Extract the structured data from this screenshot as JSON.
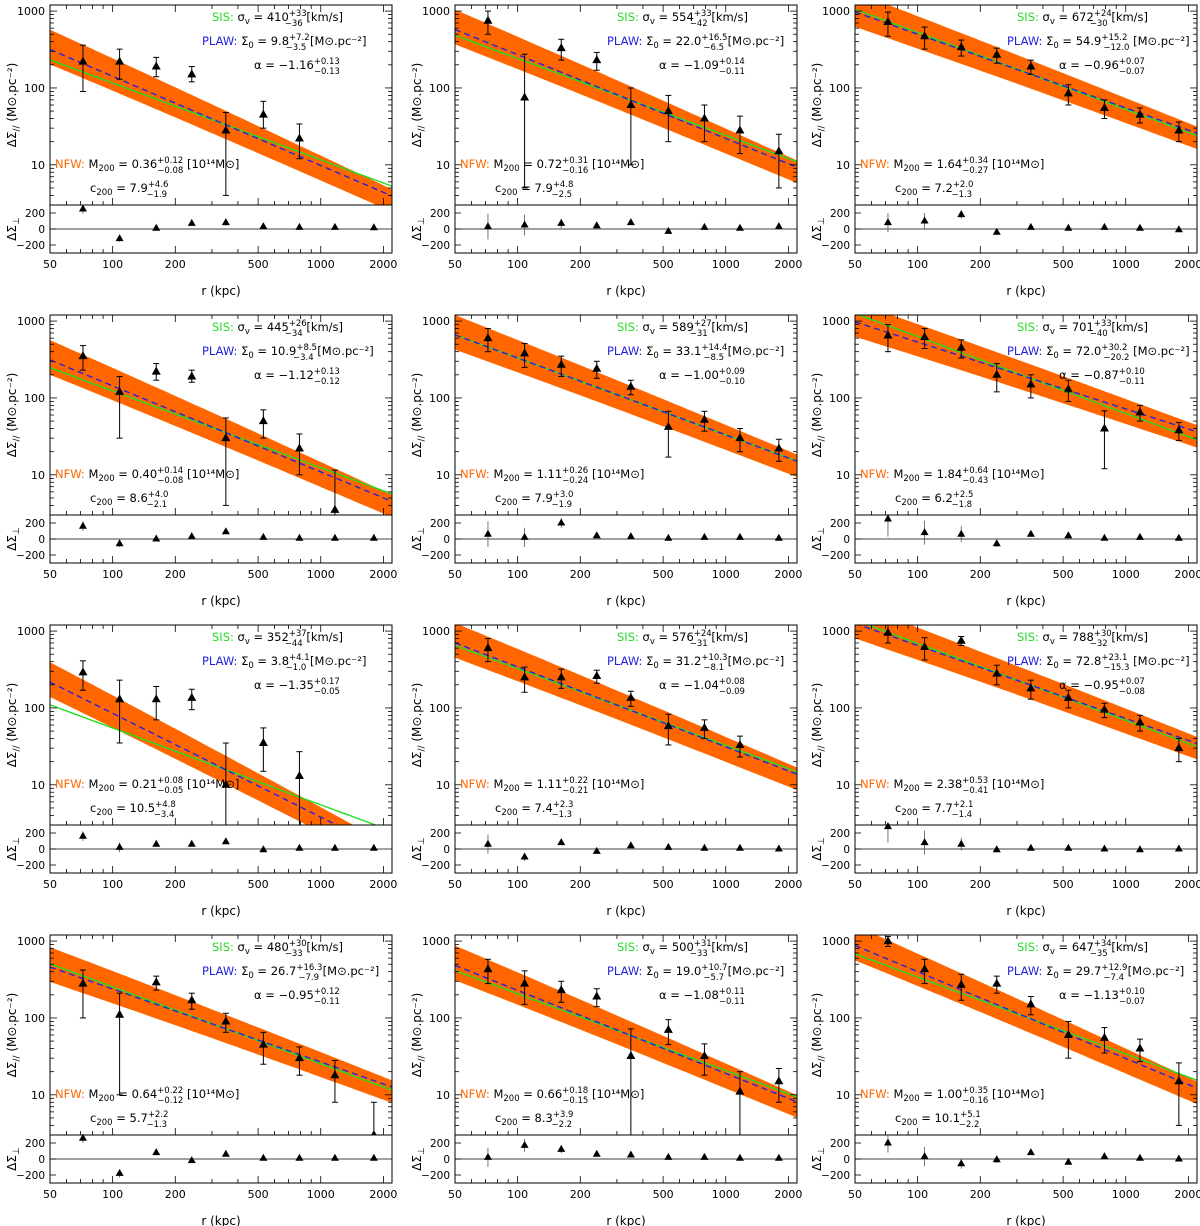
{
  "figure": {
    "colors": {
      "sis": "#22dd22",
      "plaw": "#2222dd",
      "nfw": "#ff6600",
      "band": "#ff6600",
      "data": "#000000"
    },
    "labels": {
      "sis_tag": "SIS:",
      "plaw_tag": "PLAW:",
      "nfw_tag": "NFW:",
      "sis_unit": "[km/s]",
      "plaw_unit": "[M⊙.pc⁻²]",
      "nfw_unit": "[10¹⁴M⊙]",
      "sigma_sym": "σ",
      "sigma_sub": "v",
      "sigma0_sym": "Σ",
      "sigma0_sub": "0",
      "alpha_sym": "α",
      "m_sym": "M",
      "m_sub": "200",
      "c_sym": "c",
      "c_sub": "200",
      "xlabel": "r (kpc)",
      "ylabel_main_sym": "ΔΣ",
      "ylabel_main_sub": "//",
      "ylabel_main_unit": "(M⊙.pc⁻²)",
      "ylabel_perp_sym": "ΔΣ",
      "ylabel_perp_sub": "⊥"
    },
    "xticks": [
      "50",
      "100",
      "200",
      "500",
      "1000",
      "2000"
    ],
    "yticks_main": [
      "10",
      "100",
      "1000"
    ],
    "yticks_perp": [
      "200",
      "0",
      "−200"
    ]
  },
  "chart_data": [
    {
      "type": "scatter",
      "xscale": "log",
      "yscale": "log",
      "xlim": [
        50,
        2200
      ],
      "ylim": [
        3,
        1200
      ],
      "perp_ylim": [
        -300,
        300
      ],
      "sis": {
        "value": "410",
        "up": "+33",
        "lo": "−36"
      },
      "plaw": {
        "value": "9.8",
        "up": "+7.2",
        "lo": "−3.5",
        "alpha": "−1.16",
        "alpha_up": "+0.13",
        "alpha_lo": "−0.13"
      },
      "nfw": {
        "m200": "0.36",
        "m_up": "+0.12",
        "m_lo": "−0.08",
        "c200": "7.9",
        "c_up": "+4.6",
        "c_lo": "−1.9"
      },
      "r": [
        72,
        108,
        162,
        240,
        350,
        530,
        790,
        1170,
        1800
      ],
      "dsig": [
        220,
        220,
        190,
        150,
        28,
        45,
        22,
        null,
        null
      ],
      "err_lo": [
        130,
        90,
        50,
        30,
        24,
        15,
        10,
        null,
        null
      ],
      "err_hi": [
        140,
        100,
        60,
        40,
        20,
        22,
        12,
        null,
        null
      ],
      "dperp": [
        250,
        -120,
        10,
        70,
        80,
        30,
        20,
        20,
        15
      ],
      "perp_err": [
        60,
        40,
        30,
        30,
        40,
        20,
        20,
        20,
        20
      ]
    },
    {
      "type": "scatter",
      "xscale": "log",
      "yscale": "log",
      "xlim": [
        50,
        2200
      ],
      "ylim": [
        3,
        1200
      ],
      "perp_ylim": [
        -300,
        300
      ],
      "sis": {
        "value": "554",
        "up": "+33",
        "lo": "−42"
      },
      "plaw": {
        "value": "22.0",
        "up": "+16.5",
        "lo": "−6.5",
        "alpha": "−1.09",
        "alpha_up": "+0.14",
        "alpha_lo": "−0.11"
      },
      "nfw": {
        "m200": "0.72",
        "m_up": "+0.31",
        "m_lo": "−0.16",
        "c200": "7.9",
        "c_up": "+4.8",
        "c_lo": "−2.5"
      },
      "r": [
        72,
        108,
        162,
        240,
        350,
        530,
        790,
        1170,
        1800
      ],
      "dsig": [
        750,
        75,
        330,
        230,
        60,
        50,
        40,
        28,
        15
      ],
      "err_lo": [
        250,
        70,
        100,
        60,
        50,
        30,
        20,
        14,
        10
      ],
      "err_hi": [
        250,
        200,
        100,
        60,
        40,
        30,
        20,
        15,
        10
      ],
      "dperp": [
        30,
        50,
        70,
        40,
        80,
        -30,
        20,
        10,
        30
      ],
      "perp_err": [
        160,
        130,
        60,
        40,
        20,
        20,
        20,
        20,
        20
      ]
    },
    {
      "type": "scatter",
      "xscale": "log",
      "yscale": "log",
      "xlim": [
        50,
        2200
      ],
      "ylim": [
        3,
        1200
      ],
      "perp_ylim": [
        -300,
        300
      ],
      "sis": {
        "value": "672",
        "up": "+24",
        "lo": "−30"
      },
      "plaw": {
        "value": "54.9",
        "up": "+15.2",
        "lo": "−12.0",
        "alpha": "−0.96",
        "alpha_up": "+0.07",
        "alpha_lo": "−0.07"
      },
      "nfw": {
        "m200": "1.64",
        "m_up": "+0.34",
        "m_lo": "−0.27",
        "c200": "7.2",
        "c_up": "+2.0",
        "c_lo": "−1.3"
      },
      "r": [
        72,
        108,
        162,
        240,
        350,
        530,
        790,
        1170,
        1800
      ],
      "dsig": [
        720,
        470,
        340,
        270,
        190,
        85,
        55,
        45,
        28
      ],
      "err_lo": [
        250,
        150,
        80,
        60,
        40,
        25,
        15,
        10,
        8
      ],
      "err_hi": [
        250,
        150,
        80,
        60,
        40,
        25,
        15,
        10,
        8
      ],
      "dperp": [
        80,
        100,
        180,
        -40,
        20,
        10,
        20,
        10,
        -10
      ],
      "perp_err": [
        120,
        100,
        50,
        30,
        20,
        20,
        20,
        20,
        20
      ]
    },
    {
      "type": "scatter",
      "xscale": "log",
      "yscale": "log",
      "xlim": [
        50,
        2200
      ],
      "ylim": [
        3,
        1200
      ],
      "perp_ylim": [
        -300,
        300
      ],
      "sis": {
        "value": "445",
        "up": "+26",
        "lo": "−34"
      },
      "plaw": {
        "value": "10.9",
        "up": "+8.5",
        "lo": "−3.4",
        "alpha": "−1.12",
        "alpha_up": "+0.13",
        "alpha_lo": "−0.12"
      },
      "nfw": {
        "m200": "0.40",
        "m_up": "+0.14",
        "m_lo": "−0.08",
        "c200": "8.6",
        "c_up": "+4.0",
        "c_lo": "−2.1"
      },
      "r": [
        72,
        108,
        162,
        240,
        350,
        530,
        790,
        1170,
        1800
      ],
      "dsig": [
        350,
        120,
        220,
        190,
        30,
        50,
        22,
        3.5,
        null
      ],
      "err_lo": [
        120,
        90,
        50,
        30,
        26,
        20,
        12,
        0.5,
        null
      ],
      "err_hi": [
        130,
        70,
        60,
        40,
        25,
        20,
        12,
        8,
        null
      ],
      "dperp": [
        160,
        -60,
        0,
        30,
        90,
        20,
        10,
        10,
        10
      ],
      "perp_err": [
        60,
        40,
        20,
        20,
        20,
        20,
        20,
        20,
        20
      ]
    },
    {
      "type": "scatter",
      "xscale": "log",
      "yscale": "log",
      "xlim": [
        50,
        2200
      ],
      "ylim": [
        3,
        1200
      ],
      "perp_ylim": [
        -300,
        300
      ],
      "sis": {
        "value": "589",
        "up": "+27",
        "lo": "−31"
      },
      "plaw": {
        "value": "33.1",
        "up": "+14.4",
        "lo": "−8.5",
        "alpha": "−1.00",
        "alpha_up": "+0.09",
        "alpha_lo": "−0.10"
      },
      "nfw": {
        "m200": "1.11",
        "m_up": "+0.26",
        "m_lo": "−0.24",
        "c200": "7.9",
        "c_up": "+3.0",
        "c_lo": "−1.9"
      },
      "r": [
        72,
        108,
        162,
        240,
        350,
        530,
        790,
        1170,
        1800
      ],
      "dsig": [
        600,
        380,
        270,
        240,
        140,
        42,
        52,
        30,
        22
      ],
      "err_lo": [
        200,
        130,
        80,
        60,
        30,
        25,
        15,
        10,
        7
      ],
      "err_hi": [
        200,
        130,
        80,
        60,
        30,
        25,
        15,
        10,
        7
      ],
      "dperp": [
        60,
        20,
        200,
        40,
        30,
        10,
        20,
        20,
        10
      ],
      "perp_err": [
        160,
        120,
        60,
        30,
        20,
        20,
        20,
        20,
        20
      ]
    },
    {
      "type": "scatter",
      "xscale": "log",
      "yscale": "log",
      "xlim": [
        50,
        2200
      ],
      "ylim": [
        3,
        1200
      ],
      "perp_ylim": [
        -300,
        300
      ],
      "sis": {
        "value": "701",
        "up": "+33",
        "lo": "−40"
      },
      "plaw": {
        "value": "72.0",
        "up": "+30.2",
        "lo": "−20.2",
        "alpha": "−0.87",
        "alpha_up": "+0.10",
        "alpha_lo": "−0.11"
      },
      "nfw": {
        "m200": "1.84",
        "m_up": "+0.64",
        "m_lo": "−0.43",
        "c200": "6.2",
        "c_up": "+2.5",
        "c_lo": "−1.8"
      },
      "r": [
        72,
        108,
        162,
        240,
        350,
        530,
        790,
        1170,
        1800
      ],
      "dsig": [
        650,
        620,
        450,
        200,
        150,
        130,
        40,
        65,
        38
      ],
      "err_lo": [
        250,
        180,
        120,
        80,
        50,
        40,
        28,
        15,
        10
      ],
      "err_hi": [
        250,
        180,
        120,
        80,
        50,
        40,
        28,
        15,
        10
      ],
      "dperp": [
        250,
        80,
        60,
        -60,
        60,
        40,
        10,
        20,
        10
      ],
      "perp_err": [
        220,
        150,
        100,
        40,
        30,
        20,
        20,
        20,
        20
      ]
    },
    {
      "type": "scatter",
      "xscale": "log",
      "yscale": "log",
      "xlim": [
        50,
        2200
      ],
      "ylim": [
        3,
        1200
      ],
      "perp_ylim": [
        -300,
        300
      ],
      "sis": {
        "value": "352",
        "up": "+37",
        "lo": "−44"
      },
      "plaw": {
        "value": "3.8",
        "up": "+4.1",
        "lo": "−1.0",
        "alpha": "−1.35",
        "alpha_up": "+0.17",
        "alpha_lo": "−0.05"
      },
      "nfw": {
        "m200": "0.21",
        "m_up": "+0.08",
        "m_lo": "−0.05",
        "c200": "10.5",
        "c_up": "+4.8",
        "c_lo": "−3.4"
      },
      "r": [
        72,
        108,
        162,
        240,
        350,
        530,
        790,
        1170,
        1800
      ],
      "dsig": [
        290,
        130,
        130,
        135,
        10,
        35,
        13,
        null,
        null
      ],
      "err_lo": [
        120,
        95,
        60,
        40,
        9,
        20,
        12,
        null,
        null
      ],
      "err_hi": [
        120,
        100,
        60,
        40,
        25,
        20,
        14,
        null,
        null
      ],
      "dperp": [
        160,
        20,
        60,
        60,
        90,
        -10,
        10,
        10,
        10
      ],
      "perp_err": [
        60,
        60,
        20,
        20,
        20,
        20,
        20,
        20,
        20
      ]
    },
    {
      "type": "scatter",
      "xscale": "log",
      "yscale": "log",
      "xlim": [
        50,
        2200
      ],
      "ylim": [
        3,
        1200
      ],
      "perp_ylim": [
        -300,
        300
      ],
      "sis": {
        "value": "576",
        "up": "+24",
        "lo": "−31"
      },
      "plaw": {
        "value": "31.2",
        "up": "+10.3",
        "lo": "−8.1",
        "alpha": "−1.04",
        "alpha_up": "+0.08",
        "alpha_lo": "−0.09"
      },
      "nfw": {
        "m200": "1.11",
        "m_up": "+0.22",
        "m_lo": "−0.21",
        "c200": "7.4",
        "c_up": "+2.3",
        "c_lo": "−1.3"
      },
      "r": [
        72,
        108,
        162,
        240,
        350,
        530,
        790,
        1170,
        1800
      ],
      "dsig": [
        600,
        250,
        250,
        260,
        135,
        58,
        55,
        33,
        null
      ],
      "err_lo": [
        200,
        90,
        70,
        50,
        30,
        25,
        15,
        10,
        null
      ],
      "err_hi": [
        200,
        90,
        70,
        50,
        30,
        25,
        15,
        10,
        null
      ],
      "dperp": [
        60,
        -100,
        80,
        -30,
        40,
        20,
        10,
        10,
        0
      ],
      "perp_err": [
        120,
        50,
        30,
        20,
        20,
        20,
        20,
        20,
        20
      ]
    },
    {
      "type": "scatter",
      "xscale": "log",
      "yscale": "log",
      "xlim": [
        50,
        2200
      ],
      "ylim": [
        3,
        1200
      ],
      "perp_ylim": [
        -300,
        300
      ],
      "sis": {
        "value": "788",
        "up": "+30",
        "lo": "−32"
      },
      "plaw": {
        "value": "72.8",
        "up": "+23.1",
        "lo": "−15.3",
        "alpha": "−0.95",
        "alpha_up": "+0.07",
        "alpha_lo": "−0.08"
      },
      "nfw": {
        "m200": "2.38",
        "m_up": "+0.53",
        "m_lo": "−0.41",
        "c200": "7.7",
        "c_up": "+2.1",
        "c_lo": "−1.4"
      },
      "r": [
        72,
        108,
        162,
        240,
        350,
        530,
        790,
        1170,
        1800
      ],
      "dsig": [
        950,
        620,
        750,
        280,
        180,
        135,
        95,
        65,
        30
      ],
      "err_lo": [
        250,
        200,
        100,
        80,
        50,
        35,
        20,
        15,
        10
      ],
      "err_hi": [
        250,
        200,
        100,
        80,
        50,
        35,
        20,
        15,
        10
      ],
      "dperp": [
        280,
        80,
        60,
        -10,
        10,
        10,
        0,
        -10,
        0
      ],
      "perp_err": [
        200,
        150,
        80,
        30,
        20,
        20,
        20,
        20,
        20
      ]
    },
    {
      "type": "scatter",
      "xscale": "log",
      "yscale": "log",
      "xlim": [
        50,
        2200
      ],
      "ylim": [
        3,
        1200
      ],
      "perp_ylim": [
        -300,
        300
      ],
      "sis": {
        "value": "480",
        "up": "+30",
        "lo": "−33"
      },
      "plaw": {
        "value": "26.7",
        "up": "+16.3",
        "lo": "−7.9",
        "alpha": "−0.95",
        "alpha_up": "+0.12",
        "alpha_lo": "−0.11"
      },
      "nfw": {
        "m200": "0.64",
        "m_up": "+0.22",
        "m_lo": "−0.12",
        "c200": "5.7",
        "c_up": "+2.2",
        "c_lo": "−1.3"
      },
      "r": [
        72,
        108,
        162,
        240,
        350,
        530,
        790,
        1170,
        1800
      ],
      "dsig": [
        280,
        110,
        290,
        170,
        90,
        45,
        30,
        18,
        3
      ],
      "err_lo": [
        180,
        100,
        60,
        40,
        25,
        20,
        12,
        10,
        0.5
      ],
      "err_hi": [
        140,
        100,
        60,
        40,
        25,
        20,
        12,
        10,
        5
      ],
      "dperp": [
        260,
        -180,
        80,
        -20,
        60,
        10,
        10,
        10,
        10
      ],
      "perp_err": [
        60,
        50,
        30,
        20,
        20,
        20,
        20,
        20,
        20
      ]
    },
    {
      "type": "scatter",
      "xscale": "log",
      "yscale": "log",
      "xlim": [
        50,
        2200
      ],
      "ylim": [
        3,
        1200
      ],
      "perp_ylim": [
        -300,
        300
      ],
      "sis": {
        "value": "500",
        "up": "+31",
        "lo": "−33"
      },
      "plaw": {
        "value": "19.0",
        "up": "+10.7",
        "lo": "−5.7",
        "alpha": "−1.08",
        "alpha_up": "+0.11",
        "alpha_lo": "−0.11"
      },
      "nfw": {
        "m200": "0.66",
        "m_up": "+0.18",
        "m_lo": "−0.15",
        "c200": "8.3",
        "c_up": "+3.9",
        "c_lo": "−2.2"
      },
      "r": [
        72,
        108,
        162,
        240,
        350,
        530,
        790,
        1170,
        1800
      ],
      "dsig": [
        430,
        280,
        230,
        190,
        32,
        70,
        32,
        11,
        15
      ],
      "err_lo": [
        150,
        130,
        70,
        50,
        29,
        25,
        14,
        9,
        7
      ],
      "err_hi": [
        150,
        130,
        70,
        50,
        40,
        25,
        14,
        9,
        7
      ],
      "dperp": [
        20,
        170,
        120,
        60,
        50,
        20,
        20,
        10,
        10
      ],
      "perp_err": [
        120,
        80,
        50,
        20,
        20,
        20,
        20,
        20,
        20
      ]
    },
    {
      "type": "scatter",
      "xscale": "log",
      "yscale": "log",
      "xlim": [
        50,
        2200
      ],
      "ylim": [
        3,
        1200
      ],
      "perp_ylim": [
        -300,
        300
      ],
      "sis": {
        "value": "647",
        "up": "+34",
        "lo": "−35"
      },
      "plaw": {
        "value": "29.7",
        "up": "+12.9",
        "lo": "−7.4",
        "alpha": "−1.13",
        "alpha_up": "+0.10",
        "alpha_lo": "−0.07"
      },
      "nfw": {
        "m200": "1.00",
        "m_up": "+0.35",
        "m_lo": "−0.16",
        "c200": "10.1",
        "c_up": "+5.1",
        "c_lo": "−2.2"
      },
      "r": [
        72,
        108,
        162,
        240,
        350,
        530,
        790,
        1170,
        1800
      ],
      "dsig": [
        1000,
        430,
        270,
        280,
        150,
        60,
        55,
        40,
        15
      ],
      "err_lo": [
        150,
        150,
        100,
        70,
        40,
        30,
        20,
        13,
        11
      ],
      "err_hi": [
        150,
        150,
        100,
        70,
        40,
        30,
        20,
        13,
        11
      ],
      "dperp": [
        200,
        30,
        -60,
        -10,
        80,
        -40,
        30,
        10,
        0
      ],
      "perp_err": [
        120,
        120,
        60,
        40,
        20,
        20,
        20,
        20,
        20
      ]
    }
  ]
}
